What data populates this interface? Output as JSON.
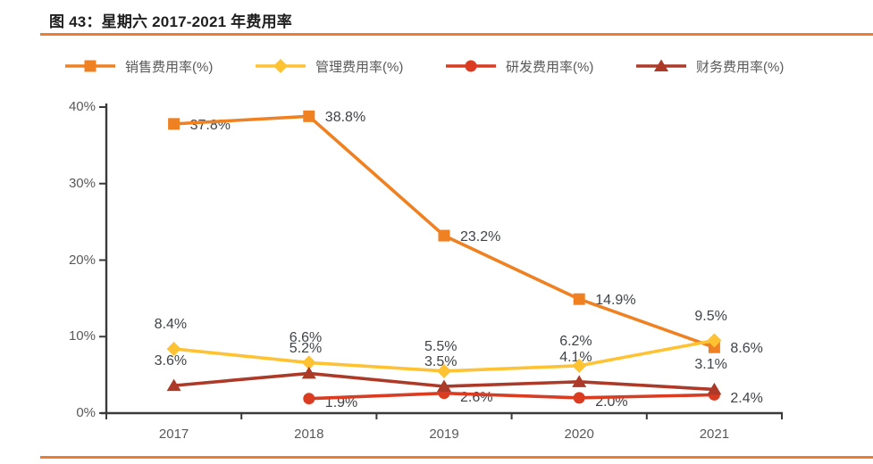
{
  "figure": {
    "title": "图 43：星期六 2017-2021 年费用率"
  },
  "colors": {
    "accent_rule": "#ED7D31",
    "axis": "#3A3A3A",
    "tick_text": "#595959",
    "data_label_text": "#3F4347"
  },
  "chart_data": {
    "type": "line",
    "title": "图 43：星期六 2017-2021 年费用率",
    "x": [
      "2017",
      "2018",
      "2019",
      "2020",
      "2021"
    ],
    "series": [
      {
        "name": "销售费用率(%)",
        "color": "#F08122",
        "marker": "square",
        "values": [
          37.8,
          38.8,
          23.2,
          14.9,
          8.6
        ],
        "labels": [
          "37.8%",
          "38.8%",
          "23.2%",
          "14.9%",
          "8.6%"
        ],
        "label_side": "right",
        "label_dy": 2
      },
      {
        "name": "管理费用率(%)",
        "color": "#FFC233",
        "marker": "diamond",
        "values": [
          8.4,
          6.6,
          5.5,
          6.2,
          9.5
        ],
        "labels": [
          "8.4%",
          "6.6%",
          "5.5%",
          "6.2%",
          "9.5%"
        ],
        "label_side": "above",
        "label_dy": 0
      },
      {
        "name": "研发费用率(%)",
        "color": "#DA3B21",
        "marker": "circle",
        "values": [
          null,
          1.9,
          2.6,
          2.0,
          2.4
        ],
        "labels": [
          null,
          "1.9%",
          "2.6%",
          "2.0%",
          "2.4%"
        ],
        "label_side": "right",
        "label_dy": 5
      },
      {
        "name": "财务费用率(%)",
        "color": "#AD3A28",
        "marker": "triangle",
        "values": [
          3.6,
          5.2,
          3.5,
          4.1,
          3.1
        ],
        "labels": [
          "3.6%",
          "5.2%",
          "3.5%",
          "4.1%",
          "3.1%"
        ],
        "label_side": "above",
        "label_dy": 0
      }
    ],
    "ylim": [
      0,
      40
    ],
    "ytick_step": 10,
    "ytick_labels": [
      "0%",
      "10%",
      "20%",
      "30%",
      "40%"
    ],
    "xlabel": "",
    "ylabel": "",
    "legend_position": "top",
    "grid": false
  }
}
